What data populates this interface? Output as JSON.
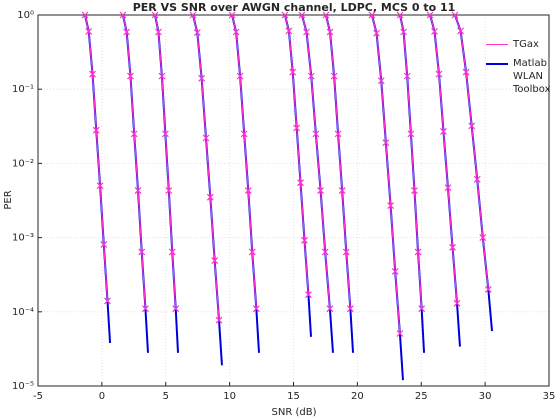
{
  "chart_data": {
    "type": "line",
    "title": "PER VS SNR over AWGN channel, LDPC, MCS 0 to 11",
    "xlabel": "SNR (dB)",
    "ylabel": "PER",
    "yscale": "log",
    "grid": true,
    "xlim": [
      -5,
      35
    ],
    "xticks": [
      -5,
      0,
      5,
      10,
      15,
      20,
      25,
      30,
      35
    ],
    "ylim": [
      1e-05,
      1
    ],
    "yticks": [
      {
        "value": 1e-05,
        "label": "10⁻⁵"
      },
      {
        "value": 0.0001,
        "label": "10⁻⁴"
      },
      {
        "value": 0.001,
        "label": "10⁻³"
      },
      {
        "value": 0.01,
        "label": "10⁻²"
      },
      {
        "value": 0.1,
        "label": "10⁻¹"
      },
      {
        "value": 1,
        "label": "10⁰"
      }
    ],
    "legend": "top-right",
    "series": [
      {
        "name": "TGax",
        "color": "#ff33cc",
        "marker": "x",
        "curves": [
          {
            "x": [
              -1.32,
              -1.03,
              -0.73,
              -0.44,
              -0.14,
              0.15,
              0.44
            ],
            "values": [
              1,
              0.6,
              0.16,
              0.028,
              0.005,
              0.00081,
              0.00014
            ]
          },
          {
            "x": [
              1.65,
              1.94,
              2.24,
              2.53,
              2.83,
              3.12,
              3.41
            ],
            "values": [
              1,
              0.59,
              0.15,
              0.025,
              0.0043,
              0.00064,
              0.00011
            ]
          },
          {
            "x": [
              4.16,
              4.43,
              4.7,
              4.97,
              5.24,
              5.51,
              5.78
            ],
            "values": [
              1,
              0.59,
              0.15,
              0.025,
              0.0043,
              0.00064,
              0.00011
            ]
          },
          {
            "x": [
              7.13,
              7.47,
              7.81,
              8.15,
              8.49,
              8.83,
              9.17
            ],
            "values": [
              1,
              0.58,
              0.14,
              0.022,
              0.0035,
              0.00049,
              7.7e-05
            ]
          },
          {
            "x": [
              10.19,
              10.51,
              10.82,
              11.14,
              11.46,
              11.77,
              12.09
            ],
            "values": [
              1,
              0.59,
              0.15,
              0.025,
              0.0043,
              0.00064,
              0.00011
            ]
          },
          {
            "x": [
              14.33,
              14.64,
              14.94,
              15.25,
              15.55,
              15.86,
              16.17
            ],
            "values": [
              1,
              0.61,
              0.17,
              0.03,
              0.0055,
              0.00092,
              0.00017
            ]
          },
          {
            "x": [
              15.66,
              16.02,
              16.39,
              16.75,
              17.12,
              17.48,
              17.85
            ],
            "values": [
              1,
              0.59,
              0.15,
              0.025,
              0.0043,
              0.00064,
              0.00011
            ]
          },
          {
            "x": [
              17.54,
              17.86,
              18.18,
              18.49,
              18.81,
              19.13,
              19.45
            ],
            "values": [
              1,
              0.59,
              0.15,
              0.025,
              0.0043,
              0.00064,
              0.00011
            ]
          },
          {
            "x": [
              21.14,
              21.5,
              21.87,
              22.23,
              22.6,
              22.96,
              23.33
            ],
            "values": [
              1,
              0.57,
              0.13,
              0.019,
              0.0027,
              0.00035,
              5.1e-05
            ]
          },
          {
            "x": [
              23.34,
              23.62,
              23.9,
              24.19,
              24.47,
              24.75,
              25.03
            ],
            "values": [
              1,
              0.59,
              0.15,
              0.025,
              0.0043,
              0.00064,
              0.00011
            ]
          },
          {
            "x": [
              25.69,
              26.04,
              26.39,
              26.74,
              27.09,
              27.45,
              27.8
            ],
            "values": [
              1,
              0.6,
              0.16,
              0.027,
              0.0047,
              0.00074,
              0.00013
            ]
          },
          {
            "x": [
              27.64,
              28.08,
              28.51,
              28.95,
              29.38,
              29.82,
              30.25
            ],
            "values": [
              1,
              0.61,
              0.17,
              0.032,
              0.0061,
              0.001,
              0.0002
            ]
          }
        ]
      },
      {
        "name": "Matlab WLAN Toolbox",
        "color": "#0000dd",
        "curves": [
          {
            "x": [
              -1.32,
              -1.03,
              -0.73,
              -0.44,
              -0.14,
              0.15,
              0.44,
              0.64
            ],
            "values": [
              1,
              0.6,
              0.16,
              0.028,
              0.005,
              0.00081,
              0.00014,
              3.8e-05
            ]
          },
          {
            "x": [
              1.65,
              1.94,
              2.24,
              2.53,
              2.83,
              3.12,
              3.41,
              3.61
            ],
            "values": [
              1,
              0.59,
              0.15,
              0.025,
              0.0043,
              0.00064,
              0.00011,
              2.8e-05
            ]
          },
          {
            "x": [
              4.16,
              4.43,
              4.7,
              4.97,
              5.24,
              5.51,
              5.78,
              5.96
            ],
            "values": [
              1,
              0.59,
              0.15,
              0.025,
              0.0043,
              0.00064,
              0.00011,
              2.8e-05
            ]
          },
          {
            "x": [
              7.13,
              7.47,
              7.81,
              8.15,
              8.49,
              8.83,
              9.17,
              9.4
            ],
            "values": [
              1,
              0.58,
              0.14,
              0.022,
              0.0035,
              0.00049,
              7.7e-05,
              1.9e-05
            ]
          },
          {
            "x": [
              10.19,
              10.51,
              10.82,
              11.14,
              11.46,
              11.77,
              12.09,
              12.3
            ],
            "values": [
              1,
              0.59,
              0.15,
              0.025,
              0.0043,
              0.00064,
              0.00011,
              2.8e-05
            ]
          },
          {
            "x": [
              14.33,
              14.64,
              14.94,
              15.25,
              15.55,
              15.86,
              16.17,
              16.37
            ],
            "values": [
              1,
              0.61,
              0.17,
              0.03,
              0.0055,
              0.00092,
              0.00017,
              4.6e-05
            ]
          },
          {
            "x": [
              15.66,
              16.02,
              16.39,
              16.75,
              17.12,
              17.48,
              17.85,
              18.09
            ],
            "values": [
              1,
              0.59,
              0.15,
              0.025,
              0.0043,
              0.00064,
              0.00011,
              2.8e-05
            ]
          },
          {
            "x": [
              17.54,
              17.86,
              18.18,
              18.49,
              18.81,
              19.13,
              19.45,
              19.66
            ],
            "values": [
              1,
              0.59,
              0.15,
              0.025,
              0.0043,
              0.00064,
              0.00011,
              2.8e-05
            ]
          },
          {
            "x": [
              21.14,
              21.5,
              21.87,
              22.23,
              22.6,
              22.96,
              23.33,
              23.57
            ],
            "values": [
              1,
              0.57,
              0.13,
              0.019,
              0.0027,
              0.00035,
              5.1e-05,
              1.2e-05
            ]
          },
          {
            "x": [
              23.34,
              23.62,
              23.9,
              24.19,
              24.47,
              24.75,
              25.03,
              25.22
            ],
            "values": [
              1,
              0.59,
              0.15,
              0.025,
              0.0043,
              0.00064,
              0.00011,
              2.8e-05
            ]
          },
          {
            "x": [
              25.69,
              26.04,
              26.39,
              26.74,
              27.09,
              27.45,
              27.8,
              28.03
            ],
            "values": [
              1,
              0.6,
              0.16,
              0.027,
              0.0047,
              0.00074,
              0.00013,
              3.4e-05
            ]
          },
          {
            "x": [
              27.64,
              28.08,
              28.51,
              28.95,
              29.38,
              29.82,
              30.25,
              30.54
            ],
            "values": [
              1,
              0.61,
              0.17,
              0.032,
              0.0061,
              0.001,
              0.0002,
              5.5e-05
            ]
          }
        ]
      }
    ]
  }
}
